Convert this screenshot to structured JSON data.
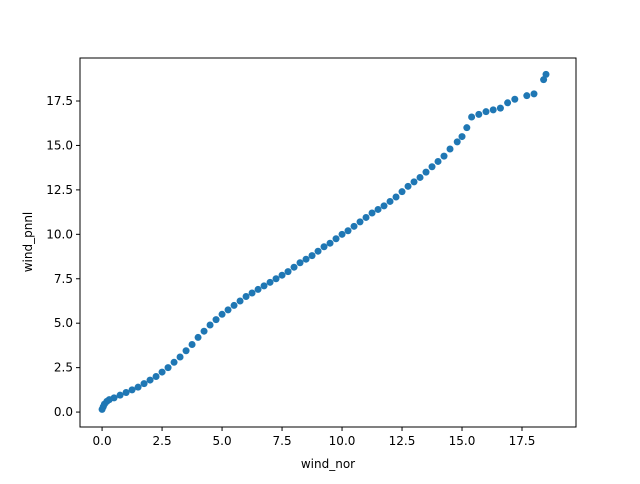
{
  "chart_data": {
    "type": "scatter",
    "xlabel": "wind_nor",
    "ylabel": "wind_pnnl",
    "color": "#1f77b4",
    "x": [
      0,
      0.05,
      0.1,
      0.2,
      0.3,
      0.5,
      0.75,
      1.0,
      1.25,
      1.5,
      1.75,
      2.0,
      2.25,
      2.5,
      2.75,
      3.0,
      3.25,
      3.5,
      3.75,
      4.0,
      4.25,
      4.5,
      4.75,
      5.0,
      5.25,
      5.5,
      5.75,
      6.0,
      6.25,
      6.5,
      6.75,
      7.0,
      7.25,
      7.5,
      7.75,
      8.0,
      8.25,
      8.5,
      8.75,
      9.0,
      9.25,
      9.5,
      9.75,
      10.0,
      10.25,
      10.5,
      10.75,
      11.0,
      11.25,
      11.5,
      11.75,
      12.0,
      12.25,
      12.5,
      12.75,
      13.0,
      13.25,
      13.5,
      13.75,
      14.0,
      14.25,
      14.5,
      14.8,
      15.0,
      15.2,
      15.4,
      15.7,
      16.0,
      16.3,
      16.6,
      16.9,
      17.2,
      17.7,
      18.0,
      18.4,
      18.5
    ],
    "values": [
      0.15,
      0.3,
      0.45,
      0.6,
      0.7,
      0.8,
      0.95,
      1.1,
      1.25,
      1.4,
      1.6,
      1.8,
      2.0,
      2.25,
      2.5,
      2.8,
      3.1,
      3.45,
      3.8,
      4.2,
      4.55,
      4.9,
      5.2,
      5.5,
      5.75,
      6.0,
      6.25,
      6.5,
      6.7,
      6.9,
      7.1,
      7.3,
      7.5,
      7.7,
      7.9,
      8.15,
      8.4,
      8.6,
      8.8,
      9.05,
      9.3,
      9.5,
      9.75,
      10.0,
      10.2,
      10.45,
      10.7,
      10.95,
      11.2,
      11.4,
      11.6,
      11.85,
      12.1,
      12.4,
      12.7,
      12.95,
      13.2,
      13.5,
      13.8,
      14.1,
      14.4,
      14.8,
      15.2,
      15.5,
      16.0,
      16.6,
      16.75,
      16.9,
      17.0,
      17.1,
      17.4,
      17.6,
      17.8,
      17.9,
      18.7,
      19.0
    ],
    "xlim": [
      -0.92,
      19.75
    ],
    "ylim": [
      -0.84,
      19.92
    ],
    "xticks": [
      {
        "value": 0,
        "label": "0.0"
      },
      2.5,
      {
        "value": 5,
        "label": "5.0"
      },
      7.5,
      {
        "value": 10,
        "label": "10.0"
      },
      12.5,
      {
        "value": 15,
        "label": "15.0"
      },
      17.5
    ],
    "yticks": [
      {
        "value": 0,
        "label": "0.0"
      },
      2.5,
      {
        "value": 5,
        "label": "5.0"
      },
      7.5,
      {
        "value": 10,
        "label": "10.0"
      },
      12.5,
      {
        "value": 15,
        "label": "15.0"
      },
      17.5
    ],
    "grid": false
  }
}
